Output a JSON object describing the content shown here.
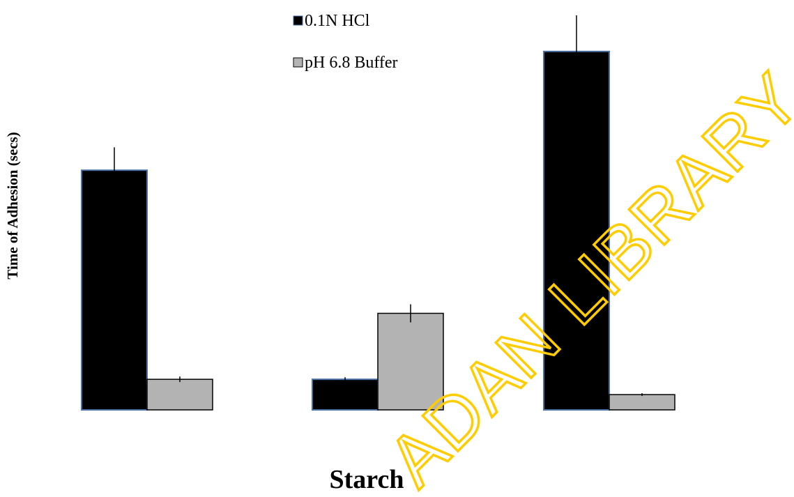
{
  "chart_data": {
    "type": "bar",
    "categories": [
      "",
      "",
      ""
    ],
    "series": [
      {
        "name": "0.1N HCl",
        "color": "#000000",
        "values": [
          345,
          44,
          516
        ],
        "errors": [
          33,
          3,
          52
        ]
      },
      {
        "name": "pH 6.8 Buffer",
        "color": "#b3b3b3",
        "values": [
          44,
          139,
          22
        ],
        "errors": [
          4,
          13,
          2
        ]
      }
    ],
    "title": "",
    "xlabel": "Starch",
    "ylabel": "Time of Adhesion (secs)",
    "ylim": [
      0,
      570
    ],
    "grid": false,
    "legend_position": "top-center",
    "error_bars": true,
    "watermark": "ADAN LIBRARY",
    "watermark_color": "#ffcc00",
    "bar_border_color": "#4a6fa5"
  }
}
